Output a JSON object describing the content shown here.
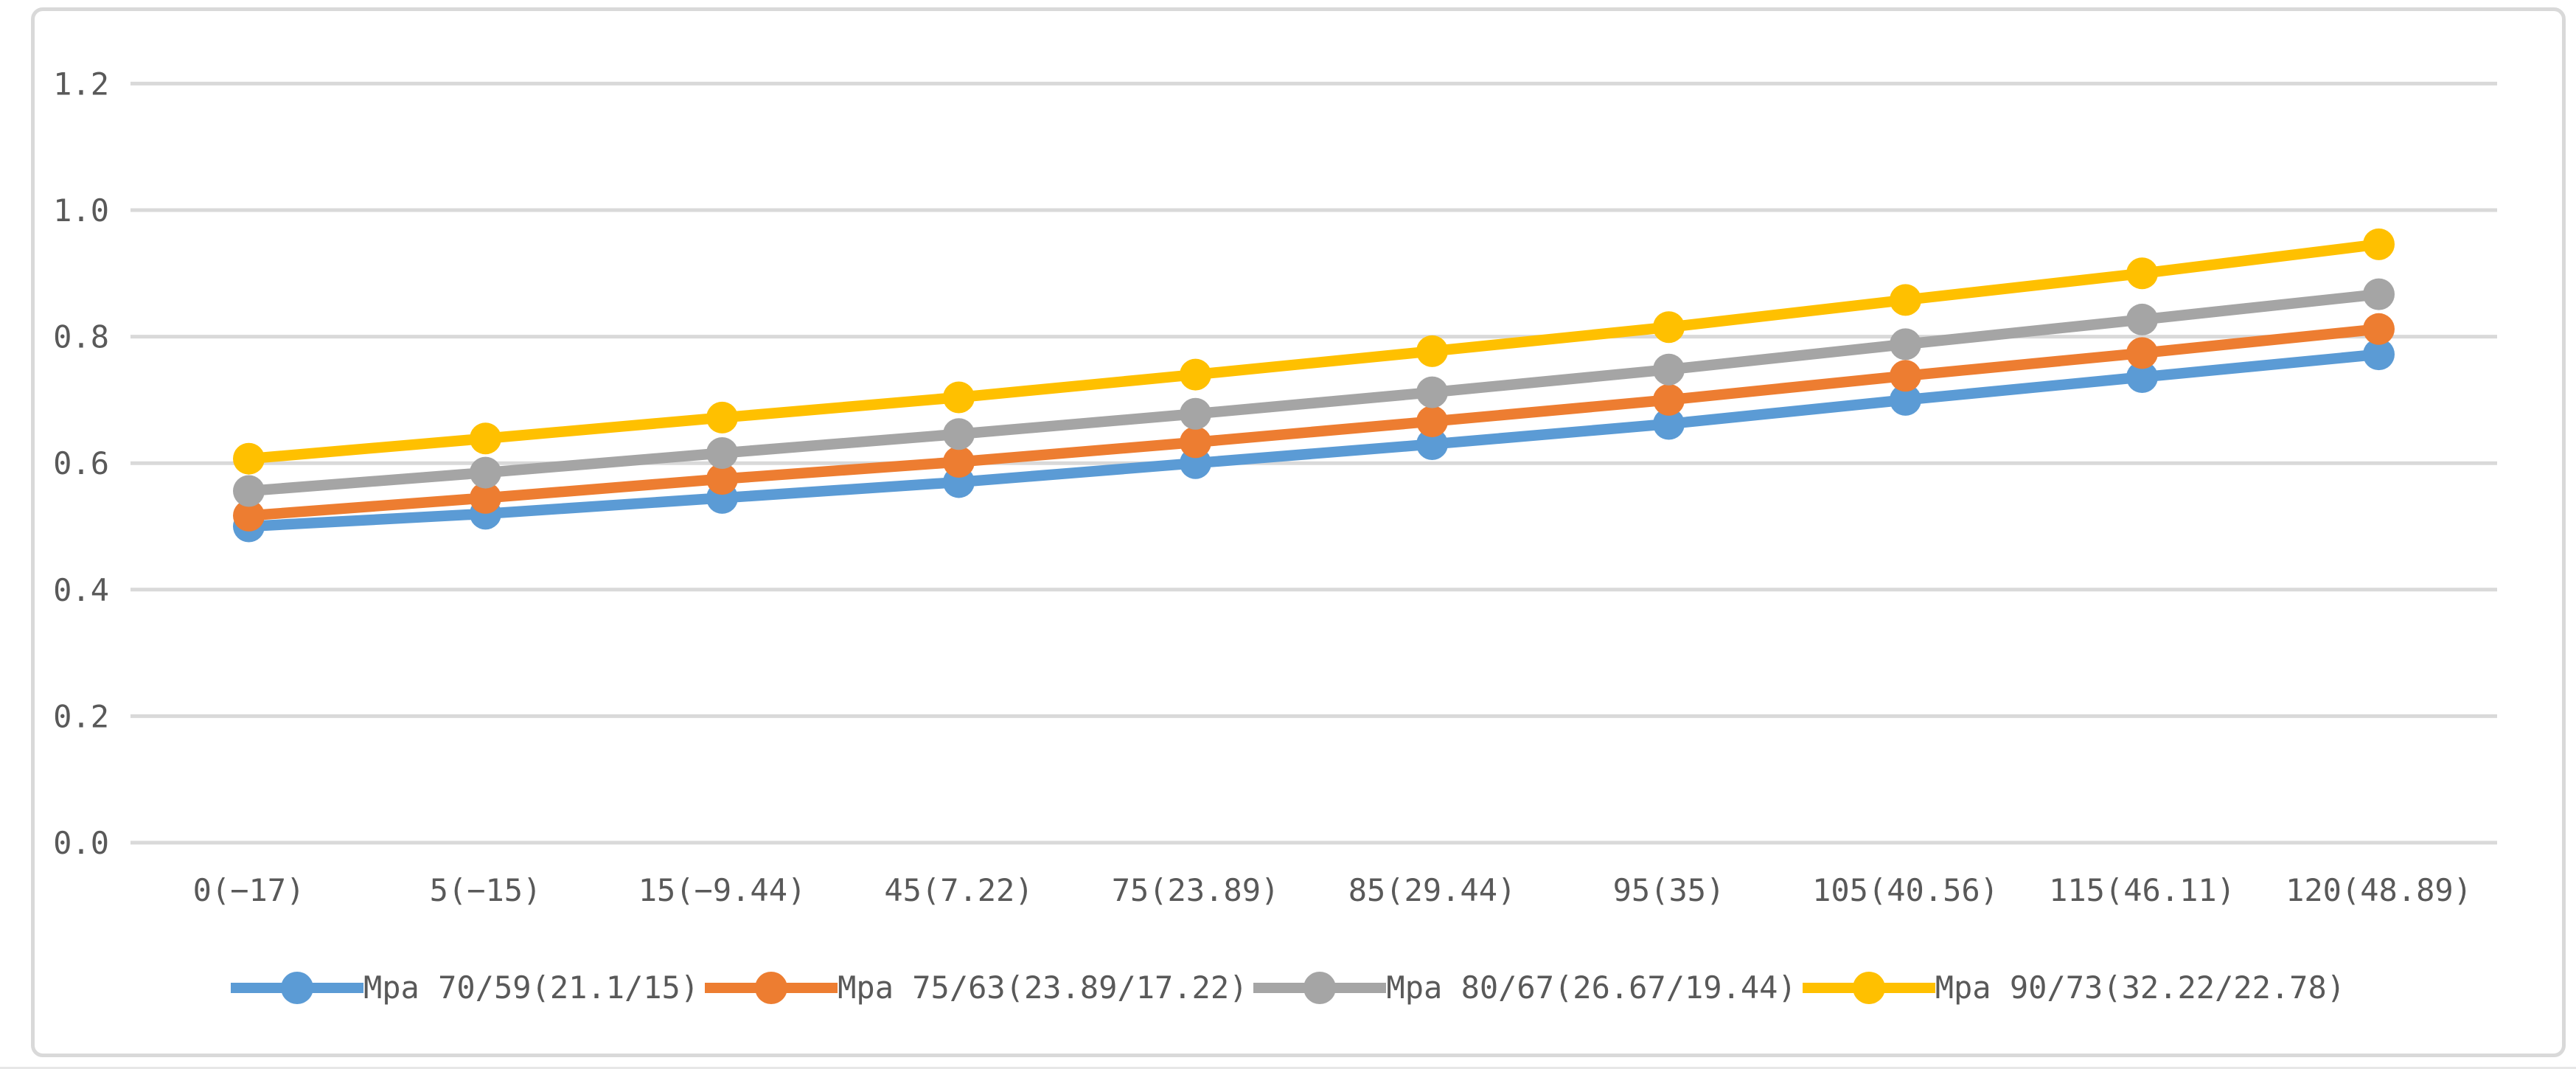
{
  "frame": {
    "background": "#FFFFFF",
    "border_color": "#D9D9D9"
  },
  "chart_data": {
    "type": "line",
    "title": "",
    "xlabel": "",
    "ylabel": "",
    "categories": [
      "0(−17)",
      "5(−15)",
      "15(−9.44)",
      "45(7.22)",
      "75(23.89)",
      "85(29.44)",
      "95(35)",
      "105(40.56)",
      "115(46.11)",
      "120(48.89)"
    ],
    "series": [
      {
        "name": "Mpa 70/59(21.1/15)",
        "color": "#5B9BD5",
        "values": [
          0.5,
          0.52,
          0.545,
          0.57,
          0.6,
          0.63,
          0.662,
          0.7,
          0.736,
          0.772
        ]
      },
      {
        "name": "Mpa 75/63(23.89/17.22)",
        "color": "#ED7D31",
        "values": [
          0.517,
          0.545,
          0.575,
          0.602,
          0.633,
          0.666,
          0.7,
          0.738,
          0.774,
          0.812
        ]
      },
      {
        "name": "Mpa 80/67(26.67/19.44)",
        "color": "#A5A5A5",
        "values": [
          0.556,
          0.585,
          0.616,
          0.646,
          0.678,
          0.712,
          0.748,
          0.788,
          0.827,
          0.867
        ]
      },
      {
        "name": "Mpa 90/73(32.22/22.78)",
        "color": "#FFC000",
        "values": [
          0.607,
          0.639,
          0.672,
          0.704,
          0.74,
          0.777,
          0.815,
          0.858,
          0.9,
          0.946
        ]
      }
    ],
    "ylim": [
      0.0,
      1.2
    ],
    "ytick_step": 0.2,
    "ytick_labels": [
      "0.0",
      "0.2",
      "0.4",
      "0.6",
      "0.8",
      "1.0",
      "1.2"
    ],
    "grid": true,
    "gridline_color": "#D9D9D9",
    "axis_text_color": "#595959",
    "legend_position": "bottom",
    "marker_style": "circle"
  }
}
